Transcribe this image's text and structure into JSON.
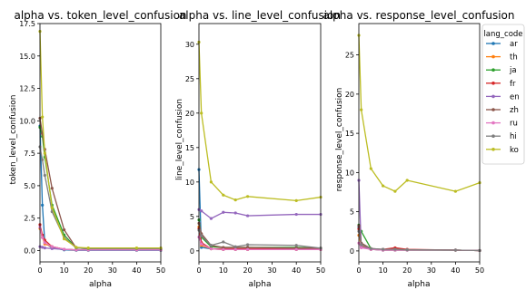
{
  "colors": {
    "ar": "#1f77b4",
    "th": "#ff7f0e",
    "ja": "#2ca02c",
    "fr": "#d62728",
    "en": "#9467bd",
    "zh": "#8c564b",
    "ru": "#e377c2",
    "hi": "#7f7f7f",
    "ko": "#bcbd22"
  },
  "legend": {
    "title": "lang_code",
    "placement": "right",
    "entries": [
      "ar",
      "th",
      "ja",
      "fr",
      "en",
      "zh",
      "ru",
      "hi",
      "ko"
    ]
  },
  "chart_data": [
    {
      "type": "line",
      "title": "alpha vs. token_level_confusion",
      "xlabel": "alpha",
      "ylabel": "token_level_confusion",
      "xlim": [
        0,
        50
      ],
      "ylim": [
        -0.875,
        17.5
      ],
      "xticks": [
        0,
        10,
        20,
        30,
        40,
        50
      ],
      "yticks": [
        0.0,
        2.5,
        5.0,
        7.5,
        10.0,
        12.5,
        15.0,
        17.5
      ],
      "ytick_labels": [
        "0.0",
        "2.5",
        "5.0",
        "7.5",
        "10.0",
        "12.5",
        "15.0",
        "17.5"
      ],
      "x": [
        0,
        1,
        2,
        5,
        10,
        15,
        20,
        40,
        50
      ],
      "series": [
        {
          "name": "ar",
          "values": [
            9.6,
            3.5,
            0.6,
            0.2,
            0.05,
            0.02,
            0.02,
            0.02,
            0.02
          ]
        },
        {
          "name": "th",
          "values": [
            1.7,
            1.0,
            0.5,
            0.3,
            0.1,
            0.05,
            0.05,
            0.05,
            0.05
          ]
        },
        {
          "name": "ja",
          "values": [
            9.5,
            8.8,
            7.2,
            3.5,
            1.2,
            0.2,
            0.15,
            0.15,
            0.15
          ]
        },
        {
          "name": "fr",
          "values": [
            2.0,
            1.2,
            0.8,
            0.3,
            0.1,
            0.05,
            0.05,
            0.05,
            0.05
          ]
        },
        {
          "name": "en",
          "values": [
            0.3,
            0.25,
            0.2,
            0.15,
            0.1,
            0.05,
            0.05,
            0.05,
            0.05
          ]
        },
        {
          "name": "zh",
          "values": [
            10.2,
            9.0,
            7.8,
            4.8,
            1.6,
            0.2,
            0.15,
            0.15,
            0.15
          ]
        },
        {
          "name": "ru",
          "values": [
            1.8,
            1.0,
            0.6,
            0.3,
            0.1,
            0.05,
            0.05,
            0.05,
            0.05
          ]
        },
        {
          "name": "hi",
          "values": [
            8.0,
            7.0,
            5.8,
            3.0,
            1.0,
            0.2,
            0.15,
            0.15,
            0.15
          ]
        },
        {
          "name": "ko",
          "values": [
            16.9,
            10.3,
            7.5,
            3.3,
            0.9,
            0.25,
            0.2,
            0.2,
            0.2
          ]
        }
      ]
    },
    {
      "type": "line",
      "title": "alpha vs. line_level_confusion",
      "xlabel": "alpha",
      "ylabel": "line_level_confusion",
      "xlim": [
        0,
        50
      ],
      "ylim": [
        -1.6,
        33
      ],
      "xticks": [
        0,
        10,
        20,
        30,
        40,
        50
      ],
      "yticks": [
        0,
        5,
        10,
        15,
        20,
        25,
        30
      ],
      "ytick_labels": [
        "0",
        "5",
        "10",
        "15",
        "20",
        "25",
        "30"
      ],
      "x": [
        0,
        1,
        5,
        10,
        15,
        20,
        40,
        50
      ],
      "series": [
        {
          "name": "ar",
          "values": [
            11.8,
            0.5,
            0.3,
            0.2,
            0.2,
            0.2,
            0.2,
            0.2
          ]
        },
        {
          "name": "th",
          "values": [
            3.5,
            0.8,
            0.3,
            0.2,
            0.2,
            0.2,
            0.2,
            0.2
          ]
        },
        {
          "name": "ja",
          "values": [
            4.5,
            2.0,
            0.6,
            0.5,
            0.5,
            0.5,
            0.5,
            0.4
          ]
        },
        {
          "name": "fr",
          "values": [
            3.2,
            1.2,
            0.3,
            0.3,
            0.3,
            0.3,
            0.3,
            0.3
          ]
        },
        {
          "name": "en",
          "values": [
            6.0,
            5.8,
            4.7,
            5.6,
            5.5,
            5.1,
            5.3,
            5.3
          ]
        },
        {
          "name": "zh",
          "values": [
            4.0,
            2.5,
            0.8,
            0.5,
            0.5,
            0.5,
            0.4,
            0.4
          ]
        },
        {
          "name": "ru",
          "values": [
            2.0,
            1.0,
            0.3,
            0.2,
            0.2,
            0.2,
            0.2,
            0.2
          ]
        },
        {
          "name": "hi",
          "values": [
            3.0,
            2.2,
            0.8,
            1.3,
            0.6,
            0.9,
            0.8,
            0.4
          ]
        },
        {
          "name": "ko",
          "values": [
            30.3,
            20.0,
            10.0,
            8.1,
            7.4,
            7.9,
            7.3,
            7.8
          ]
        }
      ]
    },
    {
      "type": "line",
      "title": "alpha vs. response_level_confusion",
      "xlabel": "alpha",
      "ylabel": "response_level_confusion",
      "xlim": [
        0,
        50
      ],
      "ylim": [
        -1.4,
        29
      ],
      "xticks": [
        0,
        10,
        20,
        30,
        40,
        50
      ],
      "yticks": [
        0,
        5,
        10,
        15,
        20,
        25
      ],
      "ytick_labels": [
        "0",
        "5",
        "10",
        "15",
        "20",
        "25"
      ],
      "x": [
        0,
        1,
        5,
        10,
        15,
        20,
        40,
        50
      ],
      "series": [
        {
          "name": "ar",
          "values": [
            3.0,
            0.5,
            0.2,
            0.1,
            0.1,
            0.1,
            0.1,
            0.05
          ]
        },
        {
          "name": "th",
          "values": [
            2.0,
            0.6,
            0.2,
            0.1,
            0.1,
            0.1,
            0.1,
            0.05
          ]
        },
        {
          "name": "ja",
          "values": [
            3.3,
            2.5,
            0.3,
            0.1,
            0.1,
            0.1,
            0.1,
            0.05
          ]
        },
        {
          "name": "fr",
          "values": [
            2.8,
            0.8,
            0.2,
            0.2,
            0.4,
            0.2,
            0.1,
            0.05
          ]
        },
        {
          "name": "en",
          "values": [
            9.0,
            0.5,
            0.2,
            0.1,
            0.1,
            0.1,
            0.1,
            0.05
          ]
        },
        {
          "name": "zh",
          "values": [
            3.2,
            1.0,
            0.3,
            0.2,
            0.2,
            0.15,
            0.1,
            0.05
          ]
        },
        {
          "name": "ru",
          "values": [
            1.0,
            0.4,
            0.2,
            0.1,
            0.1,
            0.1,
            0.1,
            0.05
          ]
        },
        {
          "name": "hi",
          "values": [
            2.5,
            0.8,
            0.3,
            0.2,
            0.2,
            0.15,
            0.1,
            0.05
          ]
        },
        {
          "name": "ko",
          "values": [
            27.5,
            18.0,
            10.5,
            8.3,
            7.6,
            9.0,
            7.6,
            8.7
          ]
        }
      ]
    }
  ]
}
